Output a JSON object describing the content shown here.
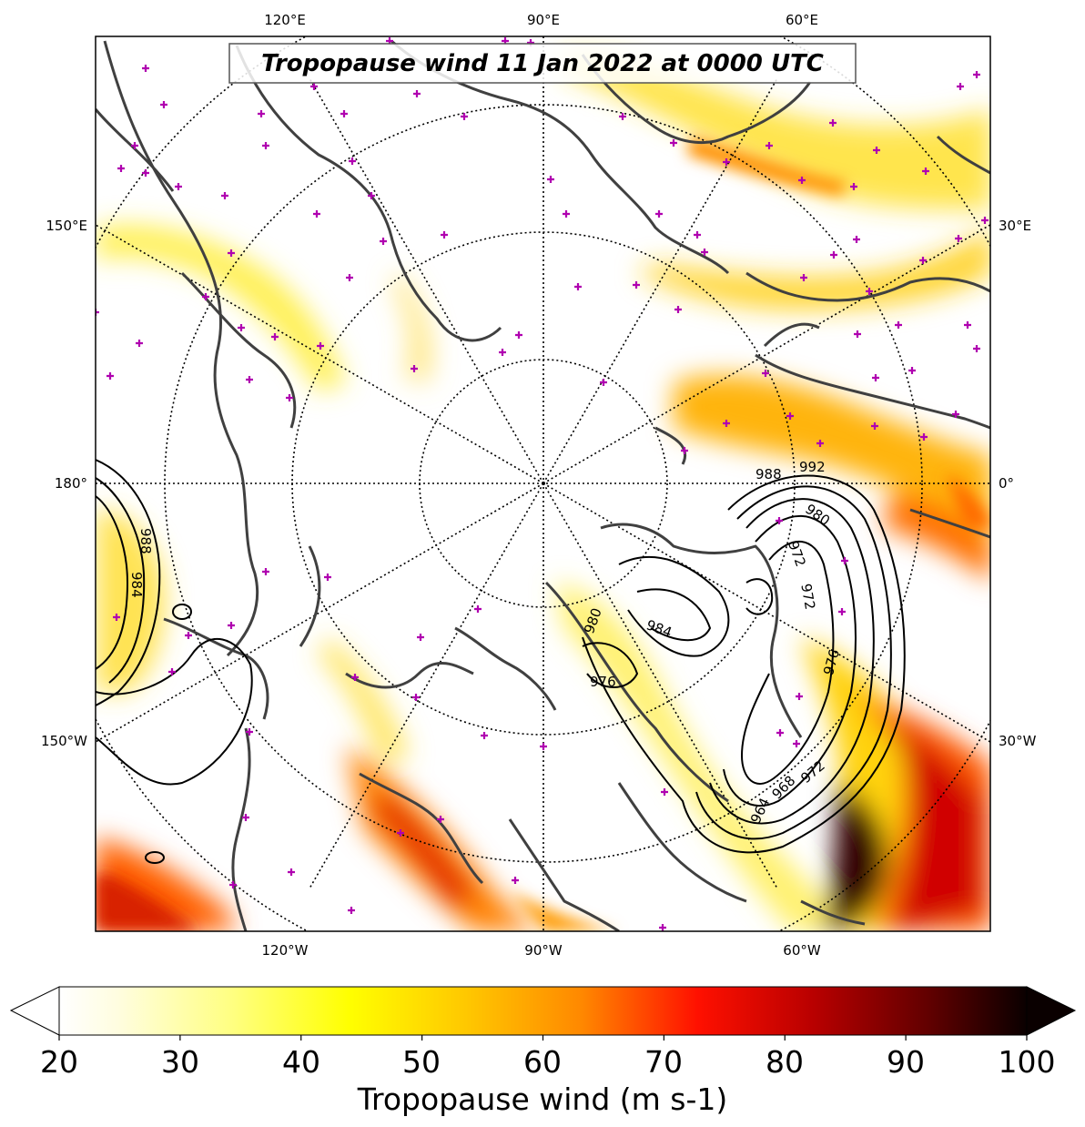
{
  "title": "Tropopause wind 11 Jan 2022 at 0000 UTC",
  "colorbar": {
    "label": "Tropopause wind (m s-1)",
    "ticks": [
      "20",
      "30",
      "40",
      "50",
      "60",
      "70",
      "80",
      "90",
      "100"
    ],
    "min": 20,
    "max": 100,
    "extend": "both",
    "colormap": "hot_r"
  },
  "longitude_labels": {
    "top": [
      "120°E",
      "90°E",
      "60°E"
    ],
    "bottom": [
      "120°W",
      "90°W",
      "60°W"
    ],
    "left": [
      "150°E",
      "180°",
      "150°W"
    ],
    "right": [
      "30°E",
      "0°",
      "30°W"
    ]
  },
  "contours": {
    "variable": "sea level pressure (hPa)",
    "labels": [
      "992",
      "988",
      "980",
      "972",
      "972",
      "976",
      "964",
      "968",
      "972",
      "984",
      "976",
      "980",
      "988",
      "984"
    ]
  },
  "colors": {
    "land_outline": "#404040",
    "marker": "#b000b0",
    "contour": "#000000",
    "graticule": "#000000"
  },
  "marker_symbol": "+"
}
